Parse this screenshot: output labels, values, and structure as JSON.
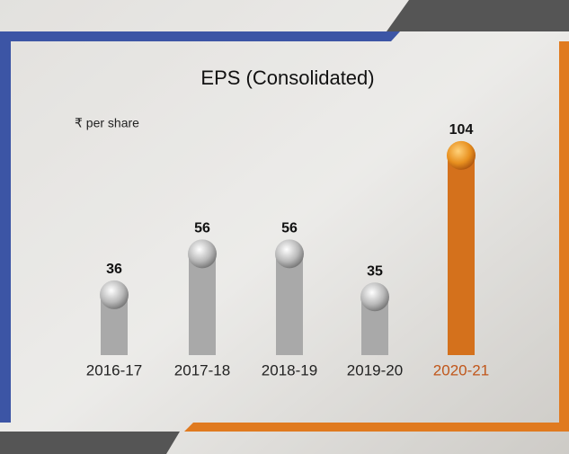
{
  "chart_data": {
    "type": "bar",
    "title": "EPS (Consolidated)",
    "unit_label": "₹ per share",
    "categories": [
      "2016-17",
      "2017-18",
      "2018-19",
      "2019-20",
      "2020-21"
    ],
    "values": [
      36,
      56,
      56,
      35,
      104
    ],
    "colors": [
      "#a9a9a9",
      "#a9a9a9",
      "#a9a9a9",
      "#a9a9a9",
      "#d4711c"
    ],
    "category_label_colors": [
      "#222222",
      "#222222",
      "#222222",
      "#222222",
      "#c0561a"
    ]
  }
}
